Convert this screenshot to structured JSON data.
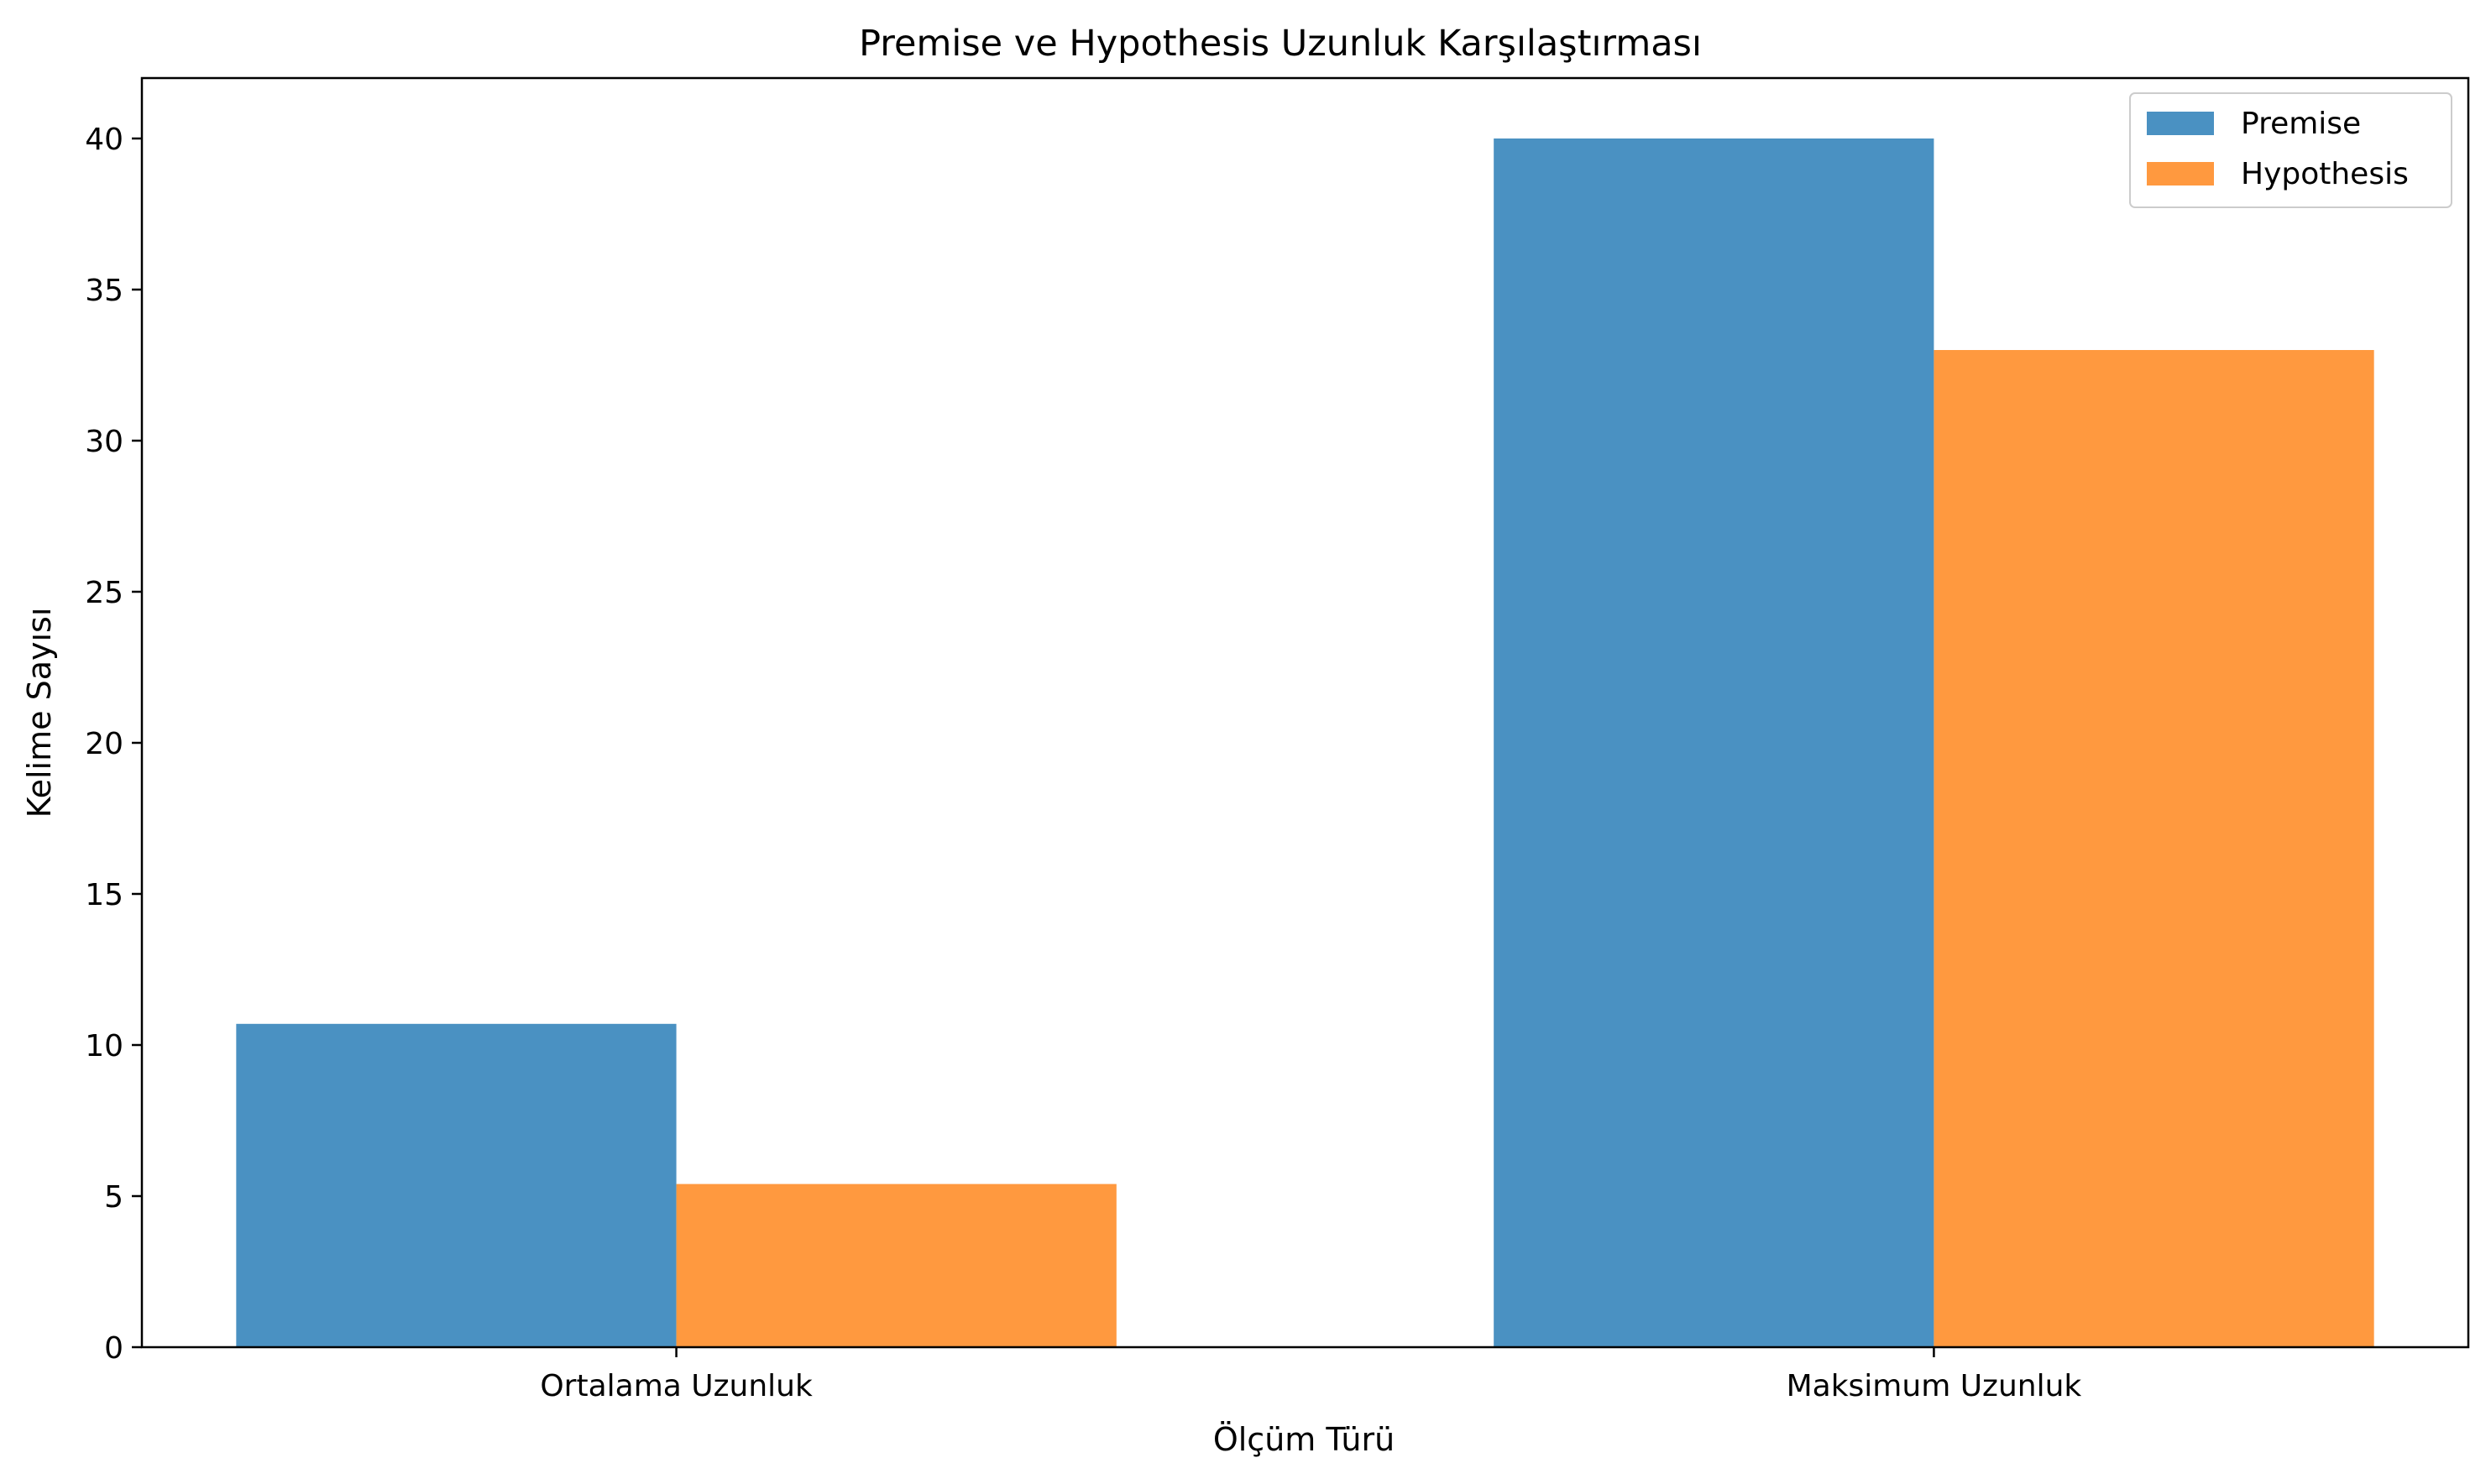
{
  "chart_data": {
    "type": "bar",
    "title": "Premise ve Hypothesis Uzunluk Karşılaştırması",
    "xlabel": "Ölçüm Türü",
    "ylabel": "Kelime Sayısı",
    "categories": [
      "Ortalama Uzunluk",
      "Maksimum Uzunluk"
    ],
    "series": [
      {
        "name": "Premise",
        "values": [
          10.7,
          40
        ],
        "color": "#4a91c2"
      },
      {
        "name": "Hypothesis",
        "values": [
          5.4,
          33
        ],
        "color": "#ff993f"
      }
    ],
    "ylim": [
      0,
      42
    ],
    "yticks": [
      0,
      5,
      10,
      15,
      20,
      25,
      30,
      35,
      40
    ],
    "grid": false,
    "legend_position": "top-right"
  }
}
